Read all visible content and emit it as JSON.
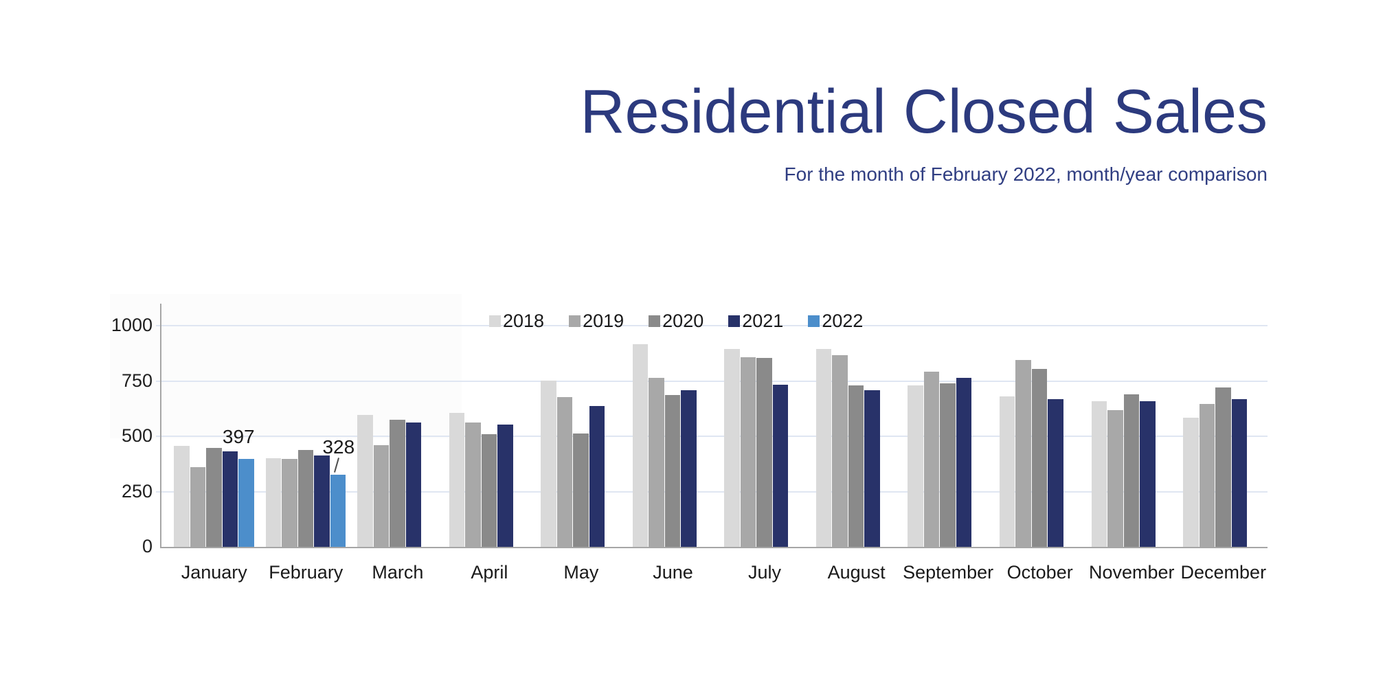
{
  "header": {
    "title": "Residential Closed Sales",
    "subtitle": "For the month of February 2022, month/year comparison",
    "title_color": "#2c3a7e",
    "subtitle_color": "#303e82"
  },
  "chart_data": {
    "type": "bar",
    "title": "Residential Closed Sales",
    "subtitle": "For the month of February 2022, month/year comparison",
    "categories": [
      "January",
      "February",
      "March",
      "April",
      "May",
      "June",
      "July",
      "August",
      "September",
      "October",
      "November",
      "December"
    ],
    "series": [
      {
        "name": "2018",
        "color": "#d9d9d9",
        "values": [
          458,
          400,
          597,
          606,
          753,
          918,
          897,
          896,
          731,
          680,
          658,
          586
        ]
      },
      {
        "name": "2019",
        "color": "#a8a8a8",
        "values": [
          362,
          398,
          460,
          564,
          679,
          764,
          858,
          866,
          793,
          847,
          619,
          648
        ]
      },
      {
        "name": "2020",
        "color": "#8a8a8a",
        "values": [
          447,
          437,
          574,
          511,
          513,
          688,
          855,
          732,
          740,
          805,
          690,
          721
        ]
      },
      {
        "name": "2021",
        "color": "#283269",
        "values": [
          433,
          415,
          564,
          553,
          638,
          710,
          734,
          709,
          764,
          669,
          658,
          670
        ]
      },
      {
        "name": "2022",
        "color": "#4c8ecb",
        "values": [
          397,
          328,
          null,
          null,
          null,
          null,
          null,
          null,
          null,
          null,
          null,
          null
        ]
      }
    ],
    "y_ticks": [
      0,
      250,
      500,
      750,
      1000
    ],
    "ylim": [
      0,
      1000
    ],
    "grid": true,
    "legend_position": "top-center",
    "data_labels": [
      {
        "series": "2022",
        "category": "January",
        "value": 397,
        "text": "397"
      },
      {
        "series": "2022",
        "category": "February",
        "value": 328,
        "text": "328",
        "leader": true
      }
    ],
    "colors": {
      "grid": "#dfe6f2",
      "axis": "#a6a6a6",
      "tick_text": "#1f1f1f",
      "label_text": "#1a1a1a"
    }
  }
}
